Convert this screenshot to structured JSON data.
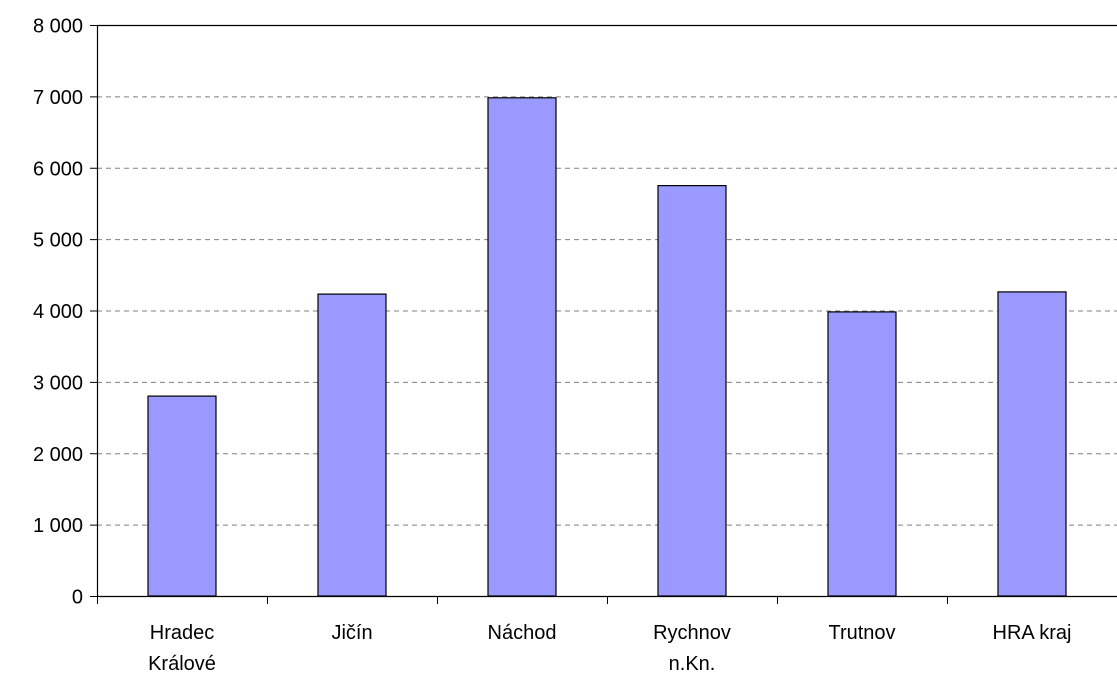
{
  "chart_data": {
    "type": "bar",
    "title": "",
    "xlabel": "",
    "ylabel": "",
    "categories": [
      [
        "Hradec",
        "Králové"
      ],
      [
        "Jičín"
      ],
      [
        "Náchod"
      ],
      [
        "Rychnov",
        "n.Kn."
      ],
      [
        "Trutnov"
      ],
      [
        "HRA kraj"
      ]
    ],
    "values": [
      2800,
      4230,
      6980,
      5750,
      3980,
      4260
    ],
    "ylim": [
      0,
      8000
    ],
    "yticks": [
      0,
      1000,
      2000,
      3000,
      4000,
      5000,
      6000,
      7000,
      8000
    ],
    "ytick_labels": [
      "0",
      "1 000",
      "2 000",
      "3 000",
      "4 000",
      "5 000",
      "6 000",
      "7 000",
      "8 000"
    ],
    "grid": true,
    "legend": false,
    "colors": {
      "bar_fill": "#9999ff",
      "bar_stroke": "#000000",
      "grid": "#808080",
      "axis": "#000000"
    }
  }
}
